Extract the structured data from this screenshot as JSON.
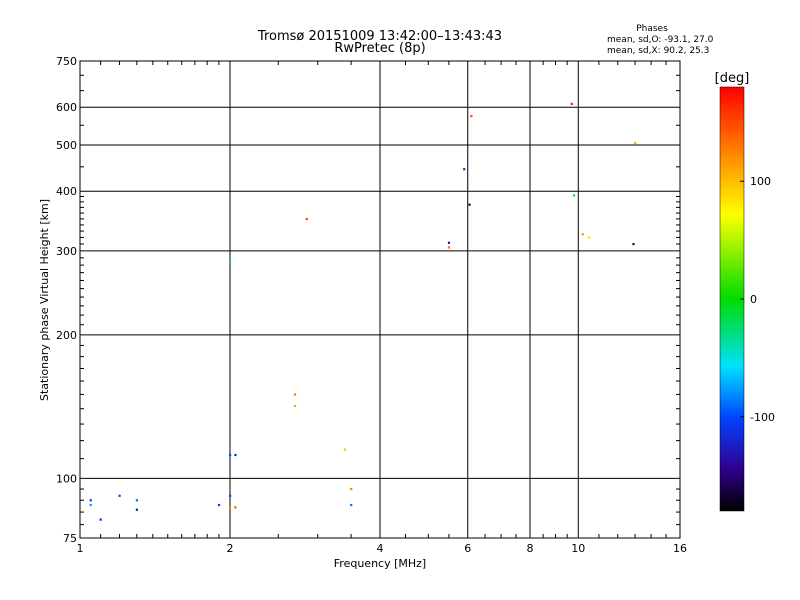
{
  "chart_data": {
    "type": "scatter",
    "title": "Tromsø 20151009 13:42:00–13:43:43",
    "subtitle": "RwPretec (8p)",
    "xlabel": "Frequency [MHz]",
    "ylabel": "Stationary phase Virtual Height [km]",
    "x_scale": "log",
    "y_scale": "log",
    "xlim": [
      1,
      16
    ],
    "ylim": [
      75,
      750
    ],
    "x_ticks": [
      1,
      2,
      4,
      6,
      8,
      10,
      16
    ],
    "x_tick_labels": [
      "1",
      "2",
      "4",
      "6",
      "8",
      "10",
      "16"
    ],
    "y_ticks": [
      75,
      100,
      200,
      300,
      400,
      500,
      600,
      750
    ],
    "y_tick_labels": [
      "75",
      "100",
      "200",
      "300",
      "400",
      "500",
      "600",
      "750"
    ],
    "grid": true,
    "phases": {
      "title": "Phases",
      "line_o": "mean, sd,O: -93.1, 27.0",
      "line_x": "mean, sd,X:  90.2, 25.3"
    },
    "colorbar": {
      "unit": "[deg]",
      "range": [
        -180,
        180
      ],
      "ticks": [
        100,
        0,
        -100
      ],
      "tick_labels": [
        "100",
        "0",
        "-100"
      ]
    },
    "series": [
      {
        "points": [
          [
            1.05,
            90,
            -110
          ],
          [
            1.1,
            82,
            -120
          ],
          [
            1.2,
            92,
            -100
          ],
          [
            1.3,
            90,
            -90
          ],
          [
            1.3,
            86,
            -130
          ],
          [
            1.05,
            88,
            -80
          ],
          [
            1.9,
            88,
            -110
          ],
          [
            2.0,
            92,
            -100
          ],
          [
            2.0,
            87,
            120
          ],
          [
            2.05,
            87,
            140
          ],
          [
            2.0,
            112,
            -100
          ],
          [
            2.05,
            112,
            -120
          ],
          [
            2.0,
            285,
            -40
          ],
          [
            2.85,
            350,
            150
          ],
          [
            2.7,
            150,
            130
          ],
          [
            2.7,
            142,
            110
          ],
          [
            3.4,
            115,
            100
          ],
          [
            3.5,
            95,
            120
          ],
          [
            3.5,
            88,
            -90
          ],
          [
            5.5,
            312,
            -140
          ],
          [
            5.5,
            305,
            130
          ],
          [
            5.9,
            445,
            -110
          ],
          [
            6.05,
            375,
            -150
          ],
          [
            6.1,
            575,
            150
          ],
          [
            9.7,
            610,
            170
          ],
          [
            13.0,
            505,
            110
          ],
          [
            9.8,
            392,
            -10
          ],
          [
            10.2,
            325,
            120
          ],
          [
            10.5,
            320,
            90
          ],
          [
            12.9,
            310,
            -150
          ]
        ]
      }
    ]
  }
}
